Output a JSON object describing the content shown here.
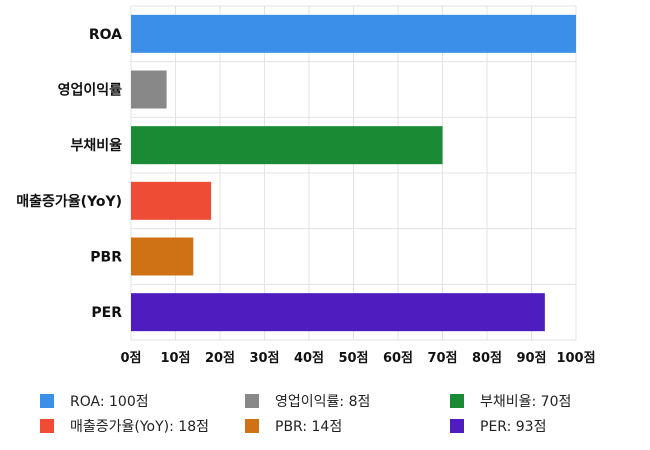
{
  "chart_data": {
    "type": "bar",
    "orientation": "horizontal",
    "categories": [
      "ROA",
      "영업이익률",
      "부채비율",
      "매출증가율(YoY)",
      "PBR",
      "PER"
    ],
    "values": [
      100,
      8,
      70,
      18,
      14,
      93
    ],
    "colors": [
      "#3b8fe6",
      "#888888",
      "#1a8a35",
      "#ef4c36",
      "#cf7216",
      "#4e1cbf"
    ],
    "xlim": [
      0,
      100
    ],
    "xticks": [
      0,
      10,
      20,
      30,
      40,
      50,
      60,
      70,
      80,
      90,
      100
    ],
    "tick_suffix": "점",
    "grid": true,
    "legend_position": "bottom",
    "legend": [
      {
        "label": "ROA: 100점",
        "color": "#3b8fe6"
      },
      {
        "label": "영업이익률: 8점",
        "color": "#888888"
      },
      {
        "label": "부채비율: 70점",
        "color": "#1a8a35"
      },
      {
        "label": "매출증가율(YoY): 18점",
        "color": "#ef4c36"
      },
      {
        "label": "PBR: 14점",
        "color": "#cf7216"
      },
      {
        "label": "PER: 93점",
        "color": "#4e1cbf"
      }
    ]
  }
}
